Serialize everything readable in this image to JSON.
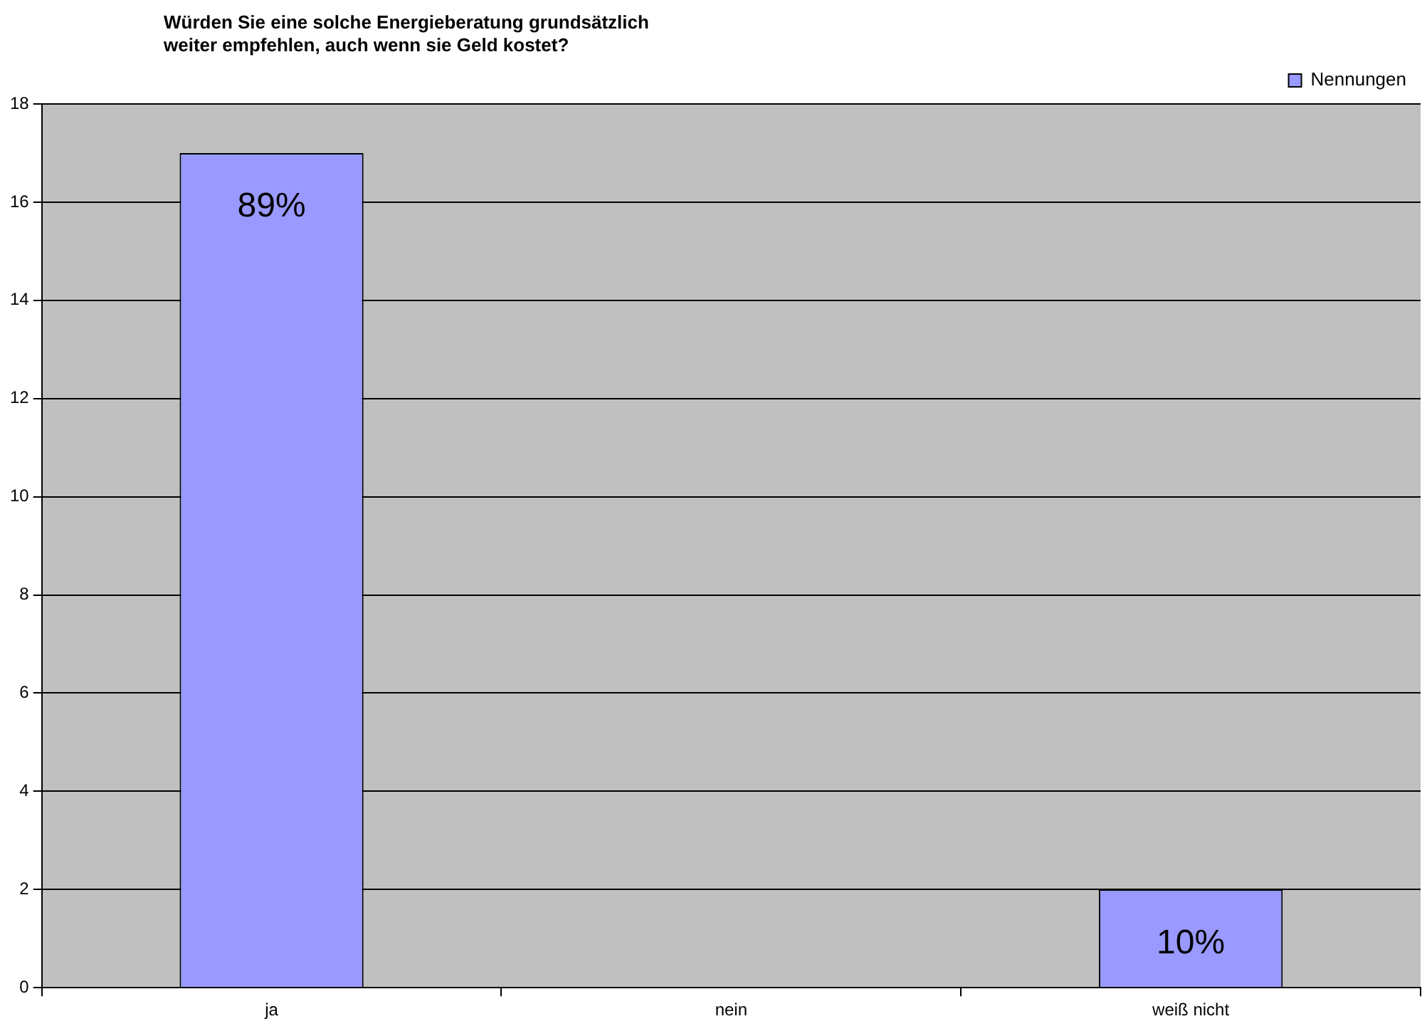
{
  "chart_data": {
    "type": "bar",
    "title": "Würden Sie eine solche Energieberatung grundsätzlich\nweiter empfehlen, auch wenn sie Geld kostet?",
    "categories": [
      "ja",
      "nein",
      "weiß nicht"
    ],
    "series": [
      {
        "name": "Nennungen",
        "color": "#9999ff",
        "values": [
          17,
          0,
          2
        ]
      }
    ],
    "annotations": [
      {
        "text": "89%",
        "x": "ja",
        "y": 17
      },
      {
        "text": "10%",
        "x": "weiß nicht",
        "y": 2
      }
    ],
    "ylim": [
      0,
      18
    ],
    "yticks": [
      0,
      2,
      4,
      6,
      8,
      10,
      12,
      14,
      16,
      18
    ],
    "grid": "y",
    "legend": "top right"
  }
}
